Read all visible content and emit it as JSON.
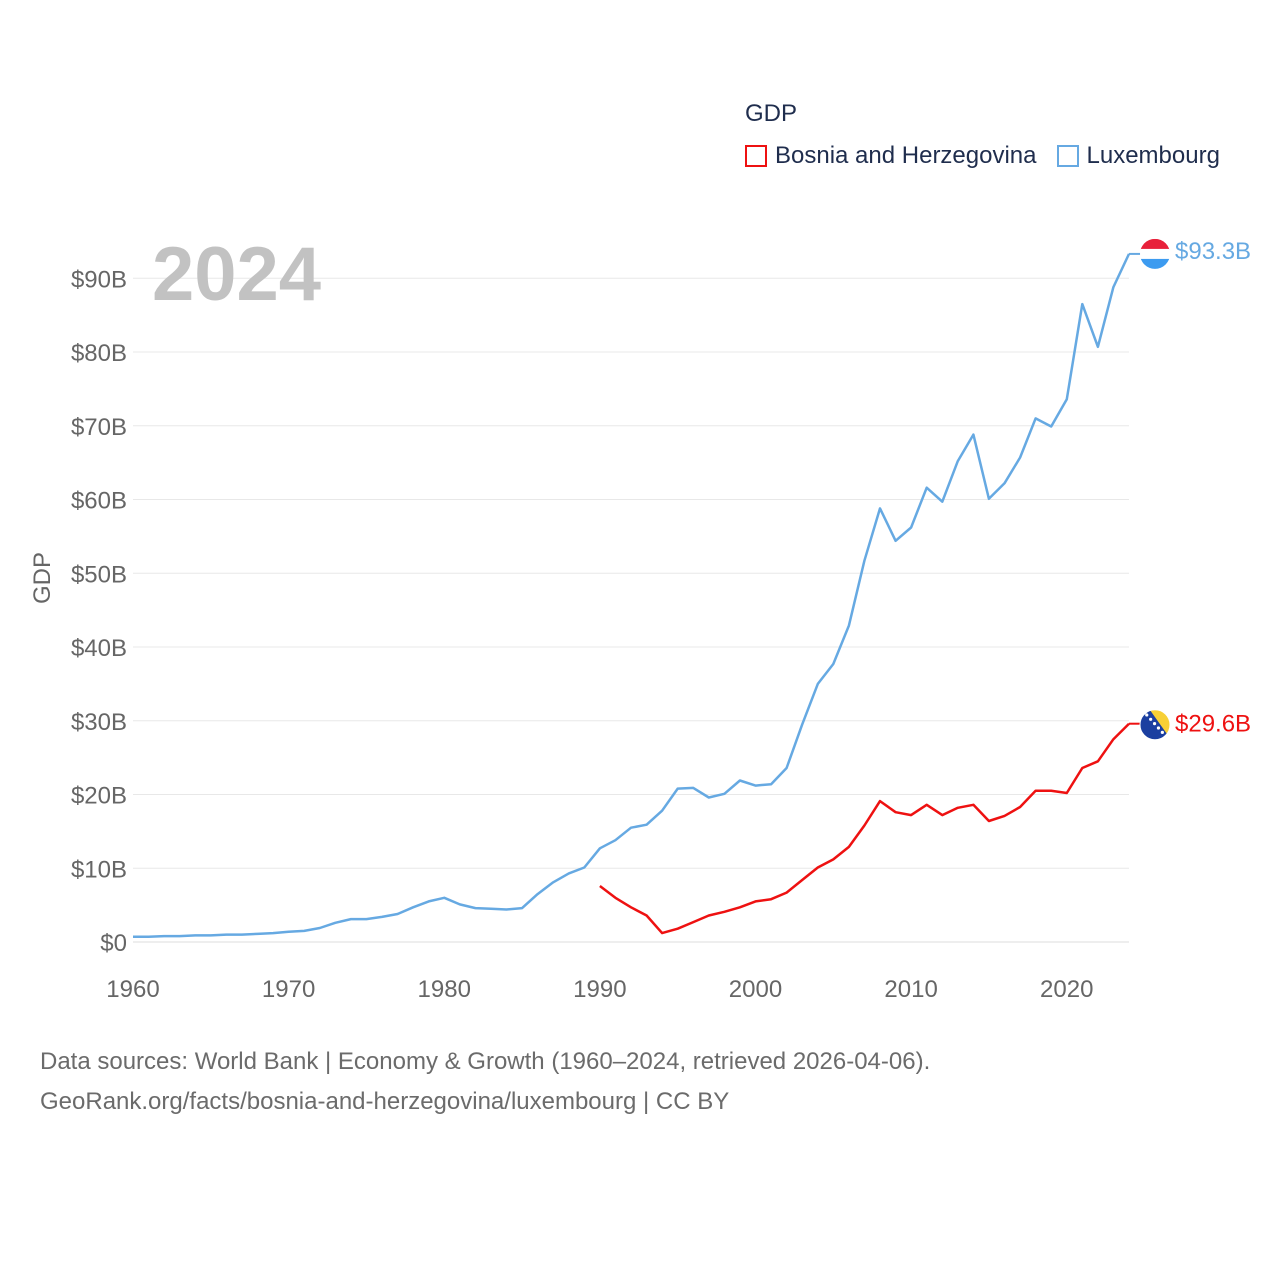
{
  "chart_data": {
    "type": "line",
    "legend": {
      "title": "GDP"
    },
    "ylabel": "GDP",
    "year_label": "2024",
    "x_ticks": [
      "1960",
      "1970",
      "1980",
      "1990",
      "2000",
      "2010",
      "2020"
    ],
    "y_ticks": [
      "$0",
      "$10B",
      "$20B",
      "$30B",
      "$40B",
      "$50B",
      "$60B",
      "$70B",
      "$80B",
      "$90B"
    ],
    "xlim": [
      1960,
      2024
    ],
    "ylim": [
      0,
      100
    ],
    "units": "USD billions",
    "series": [
      {
        "name": "Bosnia and Herzegovina",
        "color": "#ee1111",
        "end_label": "$29.6B",
        "flag": "bosnia-flag",
        "points": [
          [
            1990,
            7.6
          ],
          [
            1991,
            6.0
          ],
          [
            1992,
            4.7
          ],
          [
            1993,
            3.6
          ],
          [
            1994,
            1.2
          ],
          [
            1995,
            1.8
          ],
          [
            1996,
            2.7
          ],
          [
            1997,
            3.6
          ],
          [
            1998,
            4.1
          ],
          [
            1999,
            4.7
          ],
          [
            2000,
            5.5
          ],
          [
            2001,
            5.8
          ],
          [
            2002,
            6.7
          ],
          [
            2003,
            8.4
          ],
          [
            2004,
            10.1
          ],
          [
            2005,
            11.2
          ],
          [
            2006,
            12.9
          ],
          [
            2007,
            15.8
          ],
          [
            2008,
            19.1
          ],
          [
            2009,
            17.6
          ],
          [
            2010,
            17.2
          ],
          [
            2011,
            18.6
          ],
          [
            2012,
            17.2
          ],
          [
            2013,
            18.2
          ],
          [
            2014,
            18.6
          ],
          [
            2015,
            16.4
          ],
          [
            2016,
            17.1
          ],
          [
            2017,
            18.3
          ],
          [
            2018,
            20.5
          ],
          [
            2019,
            20.5
          ],
          [
            2020,
            20.2
          ],
          [
            2021,
            23.6
          ],
          [
            2022,
            24.5
          ],
          [
            2023,
            27.5
          ],
          [
            2024,
            29.6
          ]
        ]
      },
      {
        "name": "Luxembourg",
        "color": "#66a9e2",
        "end_label": "$93.3B",
        "flag": "luxembourg-flag",
        "points": [
          [
            1960,
            0.7
          ],
          [
            1961,
            0.7
          ],
          [
            1962,
            0.8
          ],
          [
            1963,
            0.8
          ],
          [
            1964,
            0.9
          ],
          [
            1965,
            0.9
          ],
          [
            1966,
            1.0
          ],
          [
            1967,
            1.0
          ],
          [
            1968,
            1.1
          ],
          [
            1969,
            1.2
          ],
          [
            1970,
            1.4
          ],
          [
            1971,
            1.5
          ],
          [
            1972,
            1.9
          ],
          [
            1973,
            2.6
          ],
          [
            1974,
            3.1
          ],
          [
            1975,
            3.1
          ],
          [
            1976,
            3.4
          ],
          [
            1977,
            3.8
          ],
          [
            1978,
            4.7
          ],
          [
            1979,
            5.5
          ],
          [
            1980,
            6.0
          ],
          [
            1981,
            5.1
          ],
          [
            1982,
            4.6
          ],
          [
            1983,
            4.5
          ],
          [
            1984,
            4.4
          ],
          [
            1985,
            4.6
          ],
          [
            1986,
            6.5
          ],
          [
            1987,
            8.1
          ],
          [
            1988,
            9.3
          ],
          [
            1989,
            10.1
          ],
          [
            1990,
            12.7
          ],
          [
            1991,
            13.8
          ],
          [
            1992,
            15.5
          ],
          [
            1993,
            15.9
          ],
          [
            1994,
            17.8
          ],
          [
            1995,
            20.8
          ],
          [
            1996,
            20.9
          ],
          [
            1997,
            19.6
          ],
          [
            1998,
            20.1
          ],
          [
            1999,
            21.9
          ],
          [
            2000,
            21.2
          ],
          [
            2001,
            21.4
          ],
          [
            2002,
            23.6
          ],
          [
            2003,
            29.5
          ],
          [
            2004,
            35.0
          ],
          [
            2005,
            37.7
          ],
          [
            2006,
            42.9
          ],
          [
            2007,
            51.7
          ],
          [
            2008,
            58.8
          ],
          [
            2009,
            54.4
          ],
          [
            2010,
            56.2
          ],
          [
            2011,
            61.6
          ],
          [
            2012,
            59.7
          ],
          [
            2013,
            65.2
          ],
          [
            2014,
            68.8
          ],
          [
            2015,
            60.1
          ],
          [
            2016,
            62.2
          ],
          [
            2017,
            65.7
          ],
          [
            2018,
            71.0
          ],
          [
            2019,
            69.9
          ],
          [
            2020,
            73.6
          ],
          [
            2021,
            86.5
          ],
          [
            2022,
            80.7
          ],
          [
            2023,
            88.8
          ],
          [
            2024,
            93.3
          ]
        ]
      }
    ]
  },
  "source": {
    "line1": "Data sources: World Bank | Economy & Growth (1960–2024, retrieved 2026-04-06).",
    "line2": "GeoRank.org/facts/bosnia-and-herzegovina/luxembourg | CC BY"
  }
}
